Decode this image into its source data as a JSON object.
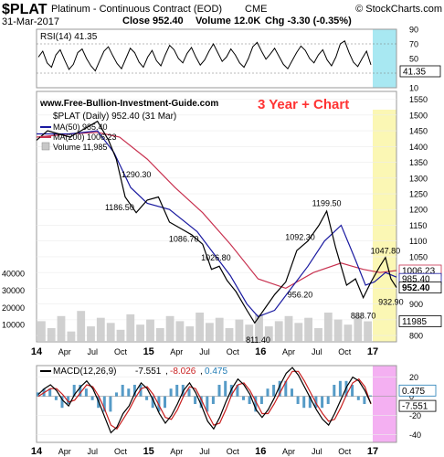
{
  "header": {
    "symbol": "$PLAT",
    "name": "Platinum - Continuous Contract (EOD)",
    "exchange": "CME",
    "date": "31-Mar-2017",
    "close": "Close 952.40",
    "volume": "Volume 12.0K",
    "change": "Chg -3.30 (-0.35%)",
    "watermark": "© StockCharts.com",
    "website": "www.Free-Bullion-Investment-Guide.com",
    "annotation": "3 Year + Chart"
  },
  "colors": {
    "price_line": "#000000",
    "price_down": "#cc0000",
    "ma50": "#1a1aa0",
    "ma200": "#c83250",
    "volume": "#c8c8c8",
    "annotation": "#ff3333",
    "highlight_yellow": "#fbf7b4",
    "highlight_cyan": "#a8e8f2",
    "highlight_magenta": "#f4b0f2",
    "macd_line": "#000000",
    "macd_signal": "#c81e1e",
    "macd_hist": "#1e7ab4"
  },
  "chart_data": [
    {
      "type": "line",
      "panel": "rsi",
      "legend": "RSI(14) 41.35",
      "current": "41.35",
      "ylim": [
        10,
        90
      ],
      "y_ticks": [
        "90",
        "70",
        "50",
        "30",
        "10"
      ],
      "reference_lines": [
        30,
        70
      ],
      "series": [
        {
          "name": "RSI(14)",
          "values": [
            52,
            60,
            44,
            38,
            55,
            62,
            48,
            35,
            42,
            58,
            63,
            50,
            40,
            33,
            47,
            60,
            66,
            54,
            43,
            36,
            50,
            64,
            58,
            45,
            38,
            52,
            61,
            47,
            40,
            55,
            68,
            62,
            50,
            44,
            57,
            65,
            52,
            41,
            48,
            60,
            70,
            58,
            46,
            52,
            63,
            55,
            44,
            38,
            50,
            66,
            72,
            60,
            49,
            56,
            64,
            53,
            42,
            36,
            47,
            58,
            67,
            61,
            50,
            44,
            55,
            62,
            48,
            40,
            52,
            70,
            74,
            58,
            45,
            39,
            50,
            60,
            41.35
          ]
        }
      ]
    },
    {
      "type": "line",
      "panel": "price",
      "legend": [
        "$PLAT (Daily) 952.40 (31 Mar)",
        "MA(50) 985.40",
        "MA(200) 1006.23",
        "Volume 11,985"
      ],
      "x_tick_labels": [
        "14",
        "Apr",
        "Jul",
        "Oct",
        "15",
        "Apr",
        "Jul",
        "Oct",
        "16",
        "Apr",
        "Jul",
        "Oct",
        "17"
      ],
      "y_ticks": [
        "1550",
        "1500",
        "1450",
        "1400",
        "1350",
        "1300",
        "1250",
        "1200",
        "1150",
        "1100",
        "1050",
        "1000",
        "950",
        "900",
        "850",
        "800"
      ],
      "ylim": [
        780,
        1575
      ],
      "volume_ticks": [
        "40000",
        "30000",
        "20000",
        "10000"
      ],
      "volume_max": 50000,
      "x_start": 2014.0,
      "x_end": 2017.25,
      "series": [
        {
          "name": "$PLAT",
          "x": [
            2014.0,
            2014.1,
            2014.2,
            2014.3,
            2014.45,
            2014.55,
            2014.65,
            2014.72,
            2014.8,
            2014.9,
            2015.0,
            2015.1,
            2015.2,
            2015.3,
            2015.4,
            2015.5,
            2015.58,
            2015.65,
            2015.72,
            2015.8,
            2015.9,
            2015.97,
            2016.05,
            2016.15,
            2016.25,
            2016.35,
            2016.45,
            2016.55,
            2016.62,
            2016.7,
            2016.8,
            2016.88,
            2016.95,
            2017.02,
            2017.1,
            2017.15,
            2017.2,
            2017.25
          ],
          "values": [
            1420,
            1450,
            1440,
            1430,
            1460,
            1480,
            1420,
            1360,
            1240,
            1190,
            1230,
            1240,
            1160,
            1140,
            1120,
            1090,
            1010,
            1020,
            975,
            940,
            880,
            840,
            880,
            930,
            970,
            1070,
            1100,
            1150,
            1195,
            1080,
            960,
            980,
            920,
            970,
            1020,
            1047.8,
            980,
            952.4
          ]
        },
        {
          "name": "MA(50)",
          "x": [
            2014.0,
            2014.3,
            2014.55,
            2014.7,
            2014.85,
            2015.0,
            2015.2,
            2015.45,
            2015.6,
            2015.75,
            2015.9,
            2016.0,
            2016.15,
            2016.3,
            2016.45,
            2016.6,
            2016.75,
            2016.88,
            2016.97,
            2017.05,
            2017.15,
            2017.25
          ],
          "values": [
            1440,
            1440,
            1450,
            1380,
            1270,
            1220,
            1200,
            1130,
            1060,
            990,
            900,
            860,
            880,
            950,
            1020,
            1100,
            1150,
            1040,
            960,
            970,
            1000,
            985.4
          ]
        },
        {
          "name": "MA(200)",
          "x": [
            2014.0,
            2014.3,
            2014.55,
            2014.75,
            2015.0,
            2015.25,
            2015.5,
            2015.75,
            2016.0,
            2016.25,
            2016.5,
            2016.75,
            2016.95,
            2017.1,
            2017.25
          ],
          "values": [
            1430,
            1440,
            1445,
            1430,
            1360,
            1270,
            1190,
            1090,
            980,
            950,
            1000,
            1030,
            1010,
            1000,
            1006.23
          ]
        }
      ],
      "annotations": [
        {
          "label": "1290.30",
          "x": 2014.9,
          "value": 1290.3
        },
        {
          "label": "1186.50",
          "x": 2014.75,
          "value": 1186.5
        },
        {
          "label": "1086.70",
          "x": 2015.33,
          "value": 1086.7
        },
        {
          "label": "1026.80",
          "x": 2015.62,
          "value": 1026.8
        },
        {
          "label": "811.40",
          "x": 2016.0,
          "value": 811.4
        },
        {
          "label": "1092.30",
          "x": 2016.38,
          "value": 1092.3
        },
        {
          "label": "1199.50",
          "x": 2016.62,
          "value": 1199.5
        },
        {
          "label": "956.20",
          "x": 2016.38,
          "value": 956.2
        },
        {
          "label": "888.70",
          "x": 2016.95,
          "value": 888.7
        },
        {
          "label": "1047.80",
          "x": 2017.15,
          "value": 1047.8
        },
        {
          "label": "932.90",
          "x": 2017.2,
          "value": 932.9
        }
      ],
      "right_labels": [
        "1006.23",
        "985.40",
        "952.40",
        "11985"
      ],
      "volume_values": [
        12000,
        8000,
        15000,
        6000,
        18000,
        9000,
        14000,
        11000,
        7000,
        16000,
        10000,
        13000,
        8000,
        15000,
        12000,
        9000,
        17000,
        11000,
        14000,
        8000,
        13000,
        10000,
        16000,
        9000,
        12000,
        15000,
        11000,
        14000,
        8000,
        17000,
        13000,
        10000,
        15000,
        11985
      ]
    },
    {
      "type": "line",
      "panel": "macd",
      "legend_label": "MACD(12,26,9)",
      "legend_values": [
        "-7.551",
        "-8.026",
        "0.475"
      ],
      "right_labels": [
        "0.475",
        "-7.551"
      ],
      "y_ticks": [
        "20",
        "0",
        "-20",
        "-40"
      ],
      "ylim": [
        -48,
        32
      ],
      "x_tick_labels": [
        "14",
        "Apr",
        "Jul",
        "Oct",
        "15",
        "Apr",
        "Jul",
        "Oct",
        "16",
        "Apr",
        "Jul",
        "Oct",
        "17"
      ],
      "series": [
        {
          "name": "MACD",
          "values": [
            2,
            8,
            12,
            6,
            -4,
            -10,
            2,
            10,
            16,
            8,
            -6,
            -22,
            -38,
            -32,
            -18,
            -10,
            4,
            14,
            8,
            -4,
            -18,
            -28,
            -20,
            -8,
            6,
            14,
            4,
            -10,
            -26,
            -34,
            -22,
            -6,
            8,
            18,
            12,
            2,
            -14,
            -22,
            -14,
            -2,
            12,
            24,
            30,
            22,
            10,
            -2,
            -14,
            -24,
            -30,
            -18,
            -4,
            10,
            20,
            16,
            6,
            -7.551
          ]
        },
        {
          "name": "Signal",
          "values": [
            0,
            4,
            8,
            8,
            2,
            -6,
            -4,
            4,
            12,
            10,
            0,
            -14,
            -30,
            -34,
            -24,
            -14,
            -2,
            8,
            10,
            2,
            -10,
            -22,
            -24,
            -14,
            0,
            10,
            8,
            -4,
            -18,
            -30,
            -28,
            -14,
            2,
            12,
            14,
            6,
            -6,
            -18,
            -18,
            -8,
            4,
            16,
            26,
            26,
            16,
            4,
            -8,
            -18,
            -26,
            -24,
            -12,
            2,
            14,
            18,
            10,
            -8.026
          ]
        }
      ]
    }
  ]
}
